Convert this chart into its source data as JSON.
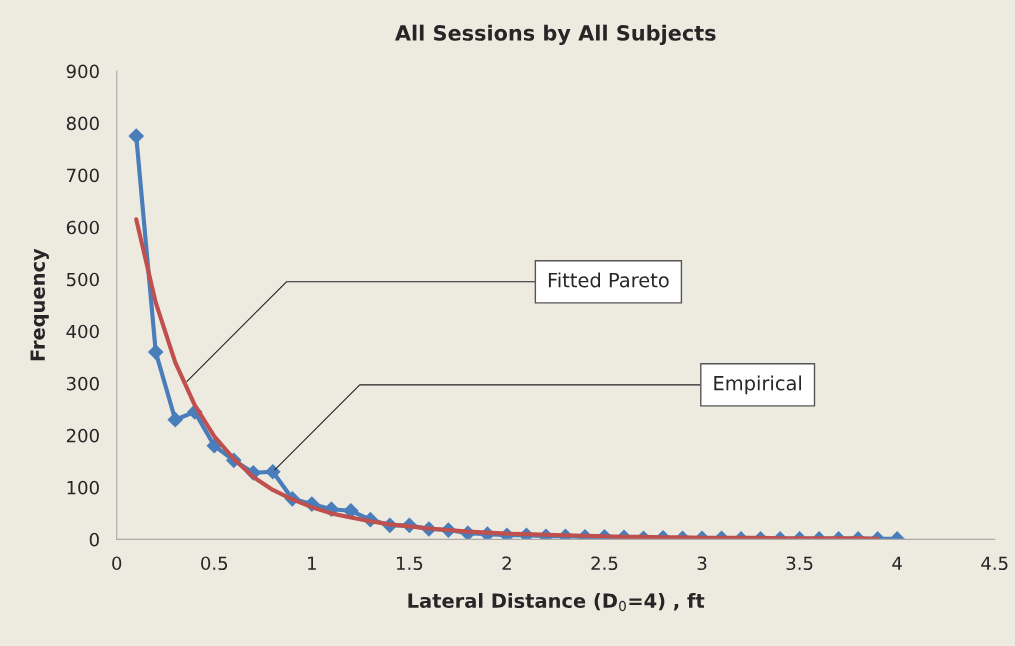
{
  "chart_data": {
    "type": "line",
    "title": "All Sessions by All Subjects",
    "xlabel": "Lateral Distance (D$_{0}$=4) , ft",
    "ylabel": "Frequency",
    "xlim": [
      0,
      4.5
    ],
    "xticks": [
      0,
      0.5,
      1,
      1.5,
      2,
      2.5,
      3,
      3.5,
      4,
      4.5
    ],
    "ylim": [
      0,
      900
    ],
    "yticks": [
      0,
      100,
      200,
      300,
      400,
      500,
      600,
      700,
      800,
      900
    ],
    "grid": false,
    "legend": false,
    "series": [
      {
        "color": "#4a7ebb",
        "marker": "diamond",
        "x": [
          0.1,
          0.2,
          0.3,
          0.4,
          0.5,
          0.6,
          0.7,
          0.8,
          0.9,
          1.0,
          1.1,
          1.2,
          1.3,
          1.4,
          1.5,
          1.6,
          1.7,
          1.8,
          1.9,
          2.0,
          2.1,
          2.2,
          2.3,
          2.4,
          2.5,
          2.6,
          2.7,
          2.8,
          2.9,
          3.0,
          3.1,
          3.2,
          3.3,
          3.4,
          3.5,
          3.6,
          3.7,
          3.8,
          3.9,
          4.0
        ],
        "values": [
          775,
          360,
          230,
          245,
          180,
          152,
          128,
          130,
          78,
          68,
          58,
          55,
          38,
          27,
          27,
          20,
          18,
          12,
          10,
          8,
          8,
          6,
          6,
          5,
          5,
          4,
          2,
          3,
          2,
          2,
          2,
          1,
          1,
          1,
          1,
          1,
          1,
          1,
          1,
          1
        ]
      },
      {
        "color": "#c0504d",
        "marker": "none",
        "x": [
          0.1,
          0.2,
          0.3,
          0.4,
          0.5,
          0.6,
          0.7,
          0.8,
          0.9,
          1.0,
          1.1,
          1.2,
          1.3,
          1.4,
          1.5,
          1.6,
          1.7,
          1.8,
          1.9,
          2.0,
          2.1,
          2.2,
          2.3,
          2.4,
          2.5,
          2.6,
          2.7,
          2.8,
          2.9,
          3.0,
          3.1,
          3.2,
          3.3,
          3.4,
          3.5,
          3.6,
          3.7,
          3.8,
          3.9
        ],
        "values": [
          615,
          455,
          340,
          258,
          198,
          155,
          120,
          95,
          77,
          62,
          50,
          42,
          35,
          29,
          25,
          21,
          18,
          15,
          13,
          11,
          10,
          9,
          8,
          7,
          6,
          5,
          5,
          4,
          4,
          3,
          3,
          3,
          3,
          2,
          2,
          2,
          2,
          2,
          1
        ]
      }
    ],
    "annotations": [
      {
        "text": "Fitted Pareto",
        "x": 0.35,
        "y": 300
      },
      {
        "text": "Empirical",
        "x": 0.8,
        "y": 130
      }
    ]
  }
}
